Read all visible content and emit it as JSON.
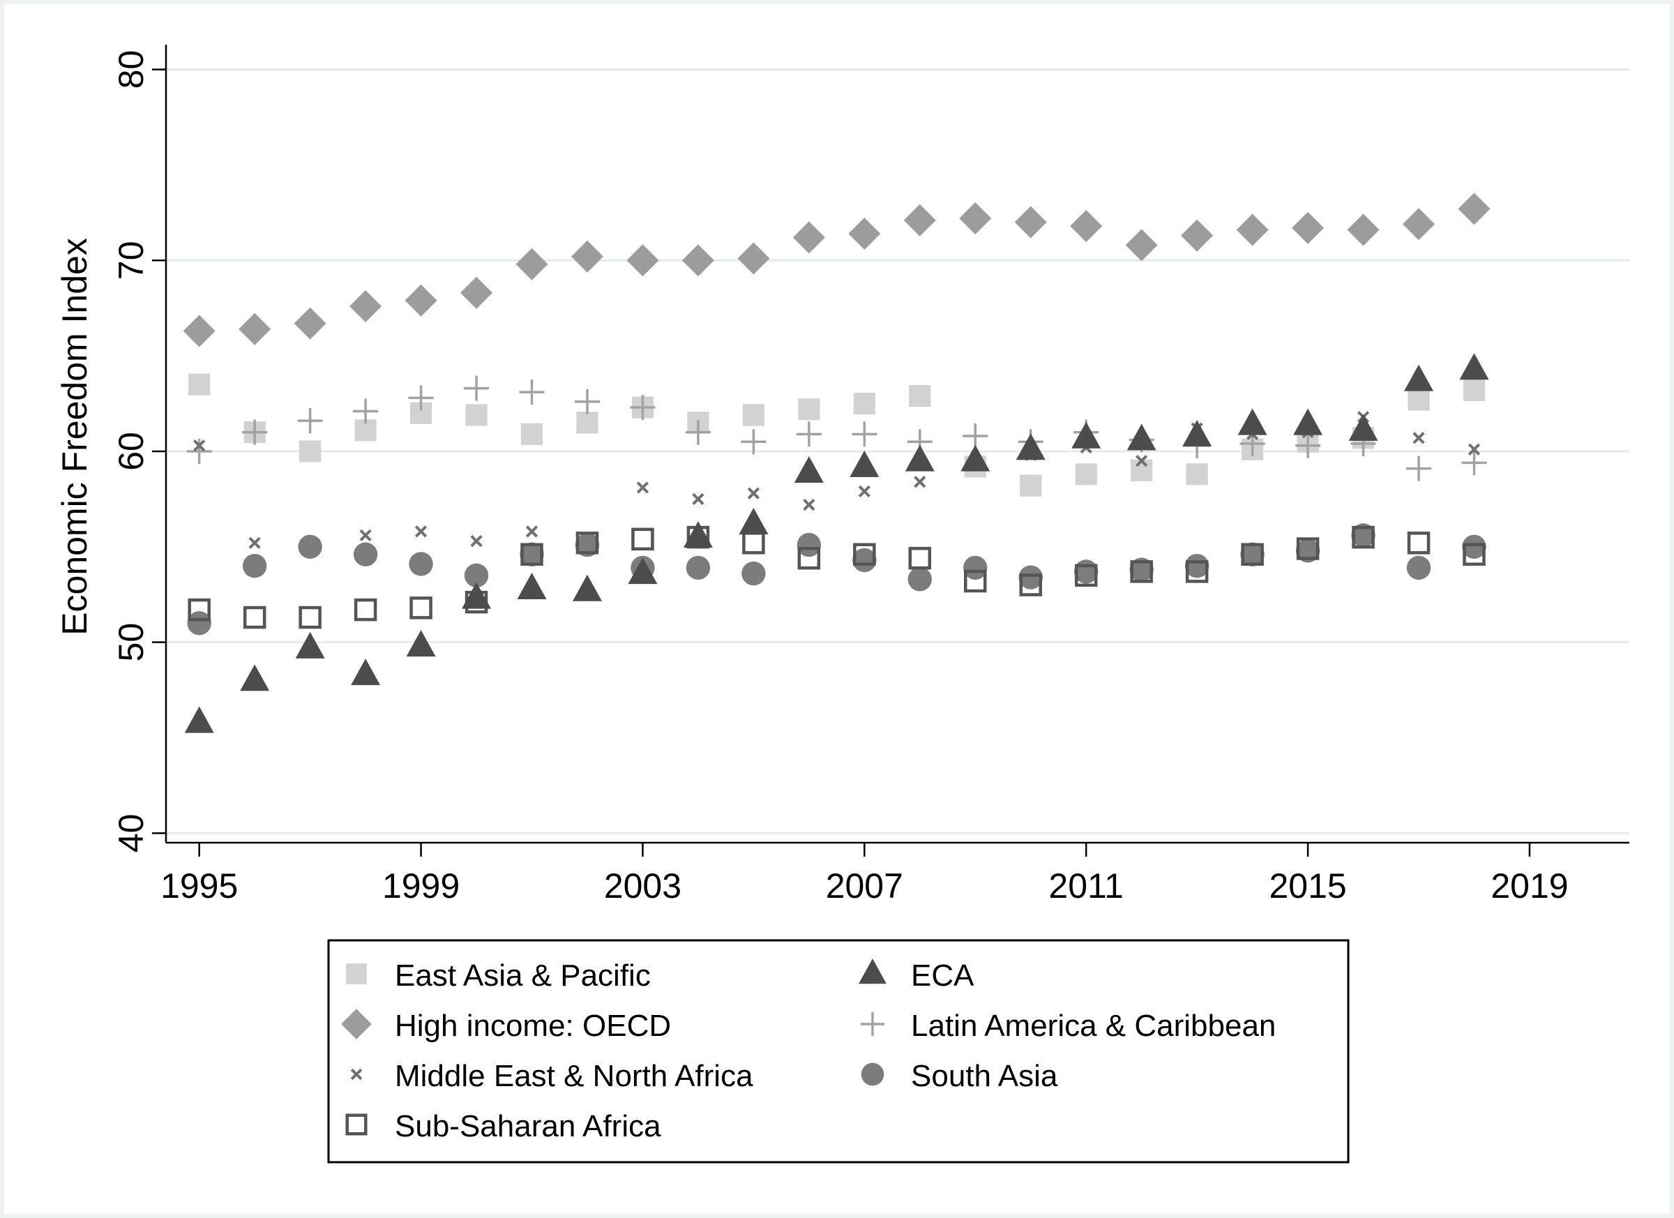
{
  "chart_data": {
    "type": "scatter",
    "title": "",
    "xlabel": "",
    "ylabel": "Economic Freedom Index",
    "xlim": [
      1994.4,
      2020.8
    ],
    "ylim": [
      39.5,
      81.3
    ],
    "xticks": [
      "1995",
      "1999",
      "2003",
      "2007",
      "2011",
      "2015",
      "2019"
    ],
    "yticks": [
      "40",
      "50",
      "60",
      "70",
      "80"
    ],
    "grid": "horizontal",
    "legend_position": "bottom",
    "x": [
      1995,
      1996,
      1997,
      1998,
      1999,
      2000,
      2001,
      2002,
      2003,
      2004,
      2005,
      2006,
      2007,
      2008,
      2009,
      2010,
      2011,
      2012,
      2013,
      2014,
      2015,
      2016,
      2017,
      2018
    ],
    "series": [
      {
        "name": "East Asia & Pacific",
        "marker": "square",
        "color": "#d2d2d2",
        "values": [
          63.5,
          61.0,
          60.0,
          61.1,
          62.0,
          61.9,
          60.9,
          61.5,
          62.3,
          61.5,
          61.9,
          62.2,
          62.5,
          62.9,
          59.2,
          58.2,
          58.8,
          59.0,
          58.8,
          60.1,
          60.5,
          60.7,
          62.7,
          63.2
        ]
      },
      {
        "name": "ECA",
        "marker": "triangle",
        "color": "#4c4c4c",
        "values": [
          45.8,
          48.0,
          49.7,
          48.3,
          49.8,
          52.3,
          52.8,
          52.7,
          53.6,
          55.5,
          56.2,
          58.9,
          59.2,
          59.5,
          59.5,
          60.1,
          60.7,
          60.6,
          60.8,
          61.4,
          61.4,
          61.1,
          63.7,
          64.3
        ]
      },
      {
        "name": "High income: OECD",
        "marker": "diamond",
        "color": "#9c9c9c",
        "values": [
          66.3,
          66.4,
          66.7,
          67.6,
          67.9,
          68.3,
          69.8,
          70.2,
          70.0,
          70.0,
          70.1,
          71.2,
          71.4,
          72.1,
          72.2,
          72.0,
          71.8,
          70.8,
          71.3,
          71.6,
          71.7,
          71.6,
          71.9,
          72.7
        ]
      },
      {
        "name": "Latin America & Caribbean",
        "marker": "plus",
        "color": "#a2a2a2",
        "values": [
          60.0,
          61.0,
          61.6,
          62.1,
          62.8,
          63.3,
          63.1,
          62.6,
          62.3,
          61.0,
          60.5,
          60.9,
          60.9,
          60.5,
          60.8,
          60.5,
          61.0,
          60.6,
          60.3,
          60.4,
          60.3,
          60.4,
          59.1,
          59.4
        ]
      },
      {
        "name": "Middle East & North Africa",
        "marker": "x",
        "color": "#707070",
        "values": [
          60.3,
          55.2,
          55.0,
          55.6,
          55.8,
          55.3,
          55.8,
          55.3,
          58.1,
          57.5,
          57.8,
          57.2,
          57.9,
          58.4,
          59.4,
          59.8,
          60.2,
          59.5,
          61.2,
          60.9,
          61.0,
          61.8,
          60.7,
          60.1
        ]
      },
      {
        "name": "South Asia",
        "marker": "circle",
        "color": "#7c7c7c",
        "values": [
          51.0,
          54.0,
          55.0,
          54.6,
          54.1,
          53.5,
          54.6,
          55.1,
          53.9,
          53.9,
          53.6,
          55.1,
          54.3,
          53.3,
          53.9,
          53.4,
          53.7,
          53.8,
          54.0,
          54.6,
          54.8,
          55.6,
          53.9,
          55.0
        ]
      },
      {
        "name": "Sub-Saharan Africa",
        "marker": "hollow-square",
        "color": "#555555",
        "values": [
          51.7,
          51.3,
          51.3,
          51.7,
          51.8,
          52.1,
          54.6,
          55.2,
          55.4,
          55.5,
          55.2,
          54.4,
          54.6,
          54.4,
          53.2,
          53.0,
          53.5,
          53.7,
          53.7,
          54.6,
          54.9,
          55.5,
          55.2,
          54.6
        ]
      }
    ]
  },
  "legend_layout": [
    "East Asia & Pacific",
    "ECA",
    "High income: OECD",
    "Latin America & Caribbean",
    "Middle East & North Africa",
    "South Asia",
    "Sub-Saharan Africa"
  ]
}
